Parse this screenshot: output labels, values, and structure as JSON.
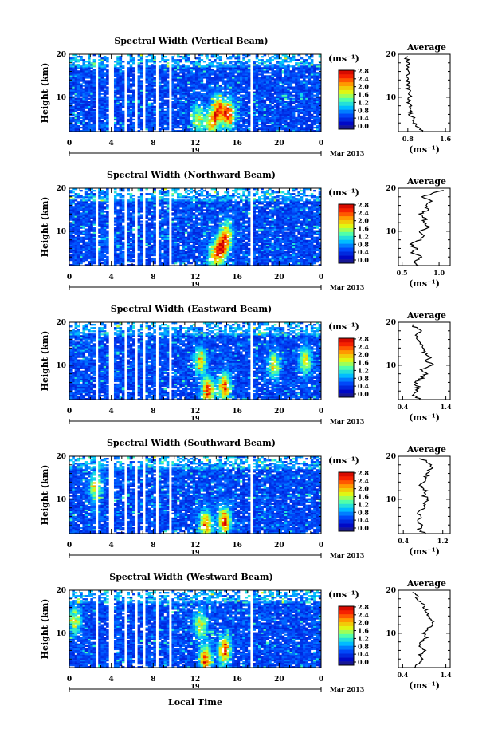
{
  "chart_data": [
    {
      "type": "heatmap",
      "title": "Spectral Width (Vertical Beam)",
      "ylabel": "Height (km)",
      "xlim": [
        0,
        24
      ],
      "ylim": [
        2,
        20
      ],
      "xticks": [
        "0",
        "4",
        "8",
        "12",
        "16",
        "20",
        "0"
      ],
      "yticks": [
        "10",
        "20"
      ],
      "date_label": "19",
      "month_label": "Mar 2013",
      "colorbar": {
        "unit": "(ms⁻¹)",
        "ticks": [
          "2.8",
          "2.4",
          "2.0",
          "1.6",
          "1.2",
          "0.8",
          "0.4",
          "0.0"
        ],
        "range": [
          0,
          3.0
        ]
      },
      "average": {
        "title": "Average",
        "xlabel": "(ms⁻¹)",
        "xticks": [
          "0.8",
          "1.6"
        ],
        "yticks": [
          "10",
          "20"
        ],
        "xlim": [
          0.6,
          1.7
        ],
        "profile": [
          [
            2,
            1.1
          ],
          [
            3,
            1.0
          ],
          [
            4,
            0.95
          ],
          [
            5,
            0.93
          ],
          [
            6,
            0.85
          ],
          [
            7,
            0.83
          ],
          [
            8,
            0.88
          ],
          [
            9,
            0.8
          ],
          [
            10,
            0.86
          ],
          [
            11,
            0.84
          ],
          [
            12,
            0.8
          ],
          [
            13,
            0.82
          ],
          [
            14,
            0.78
          ],
          [
            15,
            0.8
          ],
          [
            16,
            0.82
          ],
          [
            17,
            0.78
          ],
          [
            18,
            0.8
          ],
          [
            19,
            0.78
          ],
          [
            19.5,
            0.8
          ]
        ]
      },
      "hotspots": [
        [
          14.2,
          7,
          2.6
        ],
        [
          15.2,
          6,
          2.8
        ],
        [
          13.5,
          4,
          2.0
        ],
        [
          12.3,
          5,
          1.8
        ]
      ]
    },
    {
      "type": "heatmap",
      "title": "Spectral Width (Northward Beam)",
      "ylabel": "Height (km)",
      "xlim": [
        0,
        24
      ],
      "ylim": [
        2,
        20
      ],
      "xticks": [
        "0",
        "4",
        "8",
        "12",
        "16",
        "20",
        "0"
      ],
      "yticks": [
        "10",
        "20"
      ],
      "date_label": "19",
      "month_label": "Mar 2013",
      "colorbar": {
        "unit": "(ms⁻¹)",
        "ticks": [
          "2.8",
          "2.4",
          "2.0",
          "1.6",
          "1.2",
          "0.8",
          "0.4",
          "0.0"
        ],
        "range": [
          0,
          3.0
        ]
      },
      "average": {
        "title": "Average",
        "xlabel": "(ms⁻¹)",
        "xticks": [
          "0.5",
          "1.0"
        ],
        "yticks": [
          "10",
          "20"
        ],
        "xlim": [
          0.45,
          1.15
        ],
        "profile": [
          [
            2,
            0.72
          ],
          [
            3,
            0.65
          ],
          [
            4,
            0.78
          ],
          [
            5,
            0.62
          ],
          [
            6,
            0.7
          ],
          [
            7,
            0.6
          ],
          [
            8,
            0.75
          ],
          [
            9,
            0.8
          ],
          [
            10,
            0.72
          ],
          [
            11,
            0.85
          ],
          [
            12,
            0.78
          ],
          [
            13,
            0.82
          ],
          [
            14,
            0.75
          ],
          [
            15,
            0.85
          ],
          [
            16,
            0.8
          ],
          [
            17,
            0.9
          ],
          [
            18,
            0.75
          ],
          [
            19,
            0.95
          ],
          [
            19.5,
            1.05
          ]
        ]
      },
      "hotspots": [
        [
          14.5,
          6,
          2.6
        ],
        [
          15.0,
          9,
          2.2
        ],
        [
          13.8,
          4,
          2.0
        ]
      ]
    },
    {
      "type": "heatmap",
      "title": "Spectral Width (Eastward Beam)",
      "ylabel": "Height (km)",
      "xlim": [
        0,
        24
      ],
      "ylim": [
        2,
        20
      ],
      "xticks": [
        "0",
        "4",
        "8",
        "12",
        "16",
        "20",
        "0"
      ],
      "yticks": [
        "10",
        "20"
      ],
      "date_label": "19",
      "month_label": "Mar 2013",
      "colorbar": {
        "unit": "(ms⁻¹)",
        "ticks": [
          "2.8",
          "2.4",
          "2.0",
          "1.6",
          "1.2",
          "0.8",
          "0.4",
          "0.0"
        ],
        "range": [
          0,
          3.0
        ]
      },
      "average": {
        "title": "Average",
        "xlabel": "(ms⁻¹)",
        "xticks": [
          "0.4",
          "1.4"
        ],
        "yticks": [
          "10",
          "20"
        ],
        "xlim": [
          0.3,
          1.5
        ],
        "profile": [
          [
            2,
            0.8
          ],
          [
            3,
            0.65
          ],
          [
            4,
            0.7
          ],
          [
            5,
            0.75
          ],
          [
            6,
            0.68
          ],
          [
            7,
            0.85
          ],
          [
            8,
            0.95
          ],
          [
            9,
            0.8
          ],
          [
            10,
            1.1
          ],
          [
            11,
            0.95
          ],
          [
            12,
            1.05
          ],
          [
            13,
            0.9
          ],
          [
            14,
            0.85
          ],
          [
            15,
            0.8
          ],
          [
            16,
            0.75
          ],
          [
            17,
            0.7
          ],
          [
            18,
            0.85
          ],
          [
            19,
            0.65
          ],
          [
            19.5,
            0.6
          ]
        ]
      },
      "hotspots": [
        [
          13.2,
          4,
          2.7
        ],
        [
          14.8,
          5,
          2.6
        ],
        [
          12.5,
          11,
          2.0
        ],
        [
          19.5,
          10,
          2.0
        ],
        [
          22.5,
          11,
          2.0
        ]
      ]
    },
    {
      "type": "heatmap",
      "title": "Spectral Width (Southward Beam)",
      "ylabel": "Height (km)",
      "xlim": [
        0,
        24
      ],
      "ylim": [
        2,
        20
      ],
      "xticks": [
        "0",
        "4",
        "8",
        "12",
        "16",
        "20",
        "0"
      ],
      "yticks": [
        "10",
        "20"
      ],
      "date_label": "19",
      "month_label": "Mar 2013",
      "colorbar": {
        "unit": "(ms⁻¹)",
        "ticks": [
          "2.8",
          "2.4",
          "2.0",
          "1.6",
          "1.2",
          "0.8",
          "0.4",
          "0.0"
        ],
        "range": [
          0,
          3.0
        ]
      },
      "average": {
        "title": "Average",
        "xlabel": "(ms⁻¹)",
        "xticks": [
          "0.4",
          "1.2"
        ],
        "yticks": [
          "10",
          "20"
        ],
        "xlim": [
          0.3,
          1.35
        ],
        "profile": [
          [
            2,
            0.85
          ],
          [
            3,
            0.7
          ],
          [
            4,
            0.8
          ],
          [
            5,
            0.65
          ],
          [
            6,
            0.75
          ],
          [
            7,
            0.7
          ],
          [
            8,
            0.8
          ],
          [
            9,
            0.85
          ],
          [
            10,
            0.9
          ],
          [
            11,
            0.8
          ],
          [
            12,
            0.85
          ],
          [
            13,
            0.75
          ],
          [
            14,
            0.8
          ],
          [
            15,
            0.85
          ],
          [
            16,
            0.9
          ],
          [
            17,
            0.95
          ],
          [
            18,
            1.0
          ],
          [
            19,
            0.85
          ],
          [
            19.5,
            0.7
          ]
        ]
      },
      "hotspots": [
        [
          13.0,
          4,
          2.5
        ],
        [
          14.8,
          5,
          2.7
        ],
        [
          2.5,
          13,
          2.0
        ]
      ]
    },
    {
      "type": "heatmap",
      "title": "Spectral Width (Westward Beam)",
      "ylabel": "Height (km)",
      "xlim": [
        0,
        24
      ],
      "ylim": [
        2,
        20
      ],
      "xticks": [
        "0",
        "4",
        "8",
        "12",
        "16",
        "20",
        "0"
      ],
      "yticks": [
        "10",
        "20"
      ],
      "date_label": "19",
      "month_label": "Mar 2013",
      "xlabel": "Local Time",
      "colorbar": {
        "unit": "(ms⁻¹)",
        "ticks": [
          "2.8",
          "2.4",
          "2.0",
          "1.6",
          "1.2",
          "0.8",
          "0.4",
          "0.0"
        ],
        "range": [
          0,
          3.0
        ]
      },
      "average": {
        "title": "Average",
        "xlabel": "(ms⁻¹)",
        "xticks": [
          "0.4",
          "1.4"
        ],
        "yticks": [
          "10",
          "20"
        ],
        "xlim": [
          0.3,
          1.5
        ],
        "profile": [
          [
            2,
            0.7
          ],
          [
            3,
            0.75
          ],
          [
            4,
            0.85
          ],
          [
            5,
            0.8
          ],
          [
            6,
            0.9
          ],
          [
            7,
            0.75
          ],
          [
            8,
            0.85
          ],
          [
            9,
            0.95
          ],
          [
            10,
            0.9
          ],
          [
            11,
            1.0
          ],
          [
            12,
            1.05
          ],
          [
            13,
            1.1
          ],
          [
            14,
            1.0
          ],
          [
            15,
            0.95
          ],
          [
            16,
            0.9
          ],
          [
            17,
            0.85
          ],
          [
            18,
            0.75
          ],
          [
            19,
            0.7
          ],
          [
            19.5,
            0.6
          ]
        ]
      },
      "hotspots": [
        [
          13.0,
          4,
          2.6
        ],
        [
          14.8,
          6,
          2.7
        ],
        [
          12.5,
          12,
          2.0
        ],
        [
          0.5,
          13,
          2.0
        ]
      ]
    }
  ],
  "gap_hours": [
    [
      0.0,
      0.1
    ],
    [
      1.9,
      2.1
    ],
    [
      2.6,
      2.8
    ],
    [
      3.8,
      4.2
    ],
    [
      5.2,
      5.5
    ],
    [
      6.2,
      6.4
    ],
    [
      6.9,
      7.2
    ],
    [
      8.2,
      8.4
    ],
    [
      9.4,
      9.7
    ],
    [
      17.2,
      17.4
    ]
  ]
}
